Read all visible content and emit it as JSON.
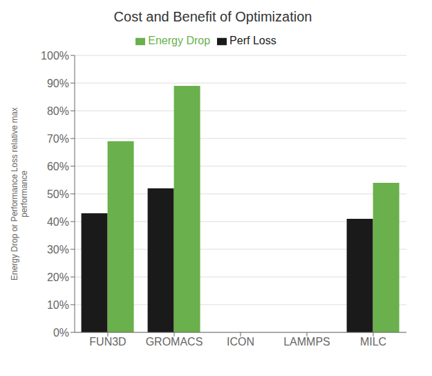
{
  "chart_data": {
    "type": "bar",
    "title": "Cost and Benefit of Optimization",
    "categories": [
      "FUN3D",
      "GROMACS",
      "ICON",
      "LAMMPS",
      "MILC"
    ],
    "series": [
      {
        "name": "Perf Loss",
        "color": "#1a1a1a",
        "values": [
          0.43,
          0.52,
          0.0,
          0.0,
          0.41
        ]
      },
      {
        "name": "Energy Drop",
        "color": "#6ab04c",
        "values": [
          0.69,
          0.89,
          0.0,
          0.0,
          0.54
        ]
      }
    ],
    "ylabel": "Energy Drop or Performance Loss relative max\nperformance",
    "ylim": [
      0,
      1.0
    ],
    "yticks": [
      {
        "value": 0.0,
        "label": "0%"
      },
      {
        "value": 0.1,
        "label": "10%"
      },
      {
        "value": 0.2,
        "label": "20%"
      },
      {
        "value": 0.3,
        "label": "30%"
      },
      {
        "value": 0.4,
        "label": "40%"
      },
      {
        "value": 0.5,
        "label": "50%"
      },
      {
        "value": 0.6,
        "label": "60%"
      },
      {
        "value": 0.7,
        "label": "70%"
      },
      {
        "value": 0.8,
        "label": "80%"
      },
      {
        "value": 0.9,
        "label": "90%"
      },
      {
        "value": 1.0,
        "label": "100%"
      }
    ],
    "grid": true,
    "legend": "top"
  }
}
